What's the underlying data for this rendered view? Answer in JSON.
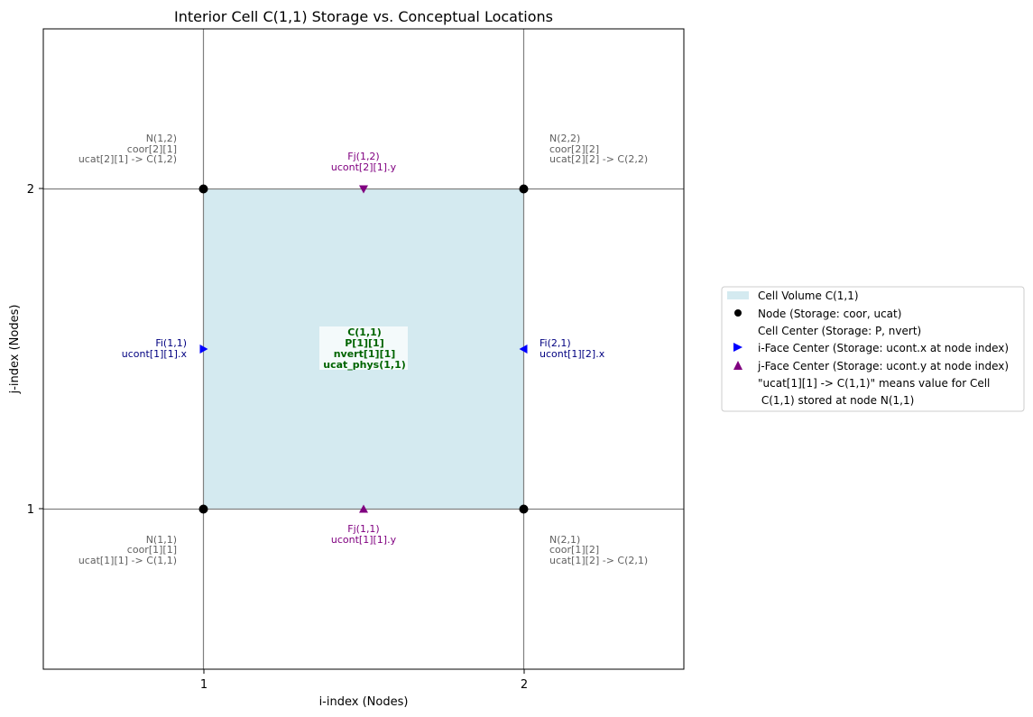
{
  "title": "Interior Cell C(1,1) Storage vs. Conceptual Locations",
  "xlabel": "i-index (Nodes)",
  "ylabel": "j-index (Nodes)",
  "xticks": [
    "1",
    "2"
  ],
  "yticks": [
    "1",
    "2"
  ],
  "colors": {
    "cell_fill": "#d4eaf0",
    "grid": "#808080",
    "node": "#000000",
    "i_face": "#0000ff",
    "j_face": "#800080",
    "center_text": "#006400",
    "node_text": "#606060",
    "i_face_text": "#000080"
  },
  "nodes": {
    "n11": [
      "N(1,1)",
      "coor[1][1]",
      "ucat[1][1] -> C(1,1)"
    ],
    "n21": [
      "N(2,1)",
      "coor[1][2]",
      "ucat[1][2] -> C(2,1)"
    ],
    "n12": [
      "N(1,2)",
      "coor[2][1]",
      "ucat[2][1] -> C(1,2)"
    ],
    "n22": [
      "N(2,2)",
      "coor[2][2]",
      "ucat[2][2] -> C(2,2)"
    ]
  },
  "faces": {
    "fi11": [
      "Fi(1,1)",
      "ucont[1][1].x"
    ],
    "fi21": [
      "Fi(2,1)",
      "ucont[1][2].x"
    ],
    "fj11": [
      "Fj(1,1)",
      "ucont[1][1].y"
    ],
    "fj12": [
      "Fj(1,2)",
      "ucont[2][1].y"
    ]
  },
  "center": [
    "C(1,1)",
    "P[1][1]",
    "nvert[1][1]",
    "ucat_phys(1,1)"
  ],
  "legend": {
    "cell_volume": "Cell Volume C(1,1)",
    "node": "Node (Storage: coor, ucat)",
    "cell_center": "Cell Center (Storage: P, nvert)",
    "i_face": "i-Face Center (Storage: ucont.x at node index)",
    "j_face": "j-Face Center (Storage: ucont.y at node index)",
    "note_line1": "\"ucat[1][1] -> C(1,1)\" means value for Cell",
    "note_line2": " C(1,1) stored at node N(1,1)"
  },
  "chart_data": {
    "type": "scatter",
    "title": "Interior Cell C(1,1) Storage vs. Conceptual Locations",
    "xlabel": "i-index (Nodes)",
    "ylabel": "j-index (Nodes)",
    "xlim": [
      0.5,
      2.5
    ],
    "ylim": [
      0.5,
      2.5
    ],
    "grid_lines_x": [
      1,
      2
    ],
    "grid_lines_y": [
      1,
      2
    ],
    "cell": {
      "x": [
        1,
        2
      ],
      "y": [
        1,
        2
      ]
    },
    "series": [
      {
        "name": "Node (Storage: coor, ucat)",
        "marker": "circle",
        "x": [
          1,
          2,
          1,
          2
        ],
        "y": [
          1,
          1,
          2,
          2
        ]
      },
      {
        "name": "i-Face Center (Storage: ucont.x at node index)",
        "marker": "triangle",
        "x": [
          1,
          2
        ],
        "y": [
          1.5,
          1.5
        ]
      },
      {
        "name": "j-Face Center (Storage: ucont.y at node index)",
        "marker": "triangle",
        "x": [
          1.5,
          1.5
        ],
        "y": [
          1,
          2
        ]
      }
    ],
    "legend_position": "right"
  }
}
